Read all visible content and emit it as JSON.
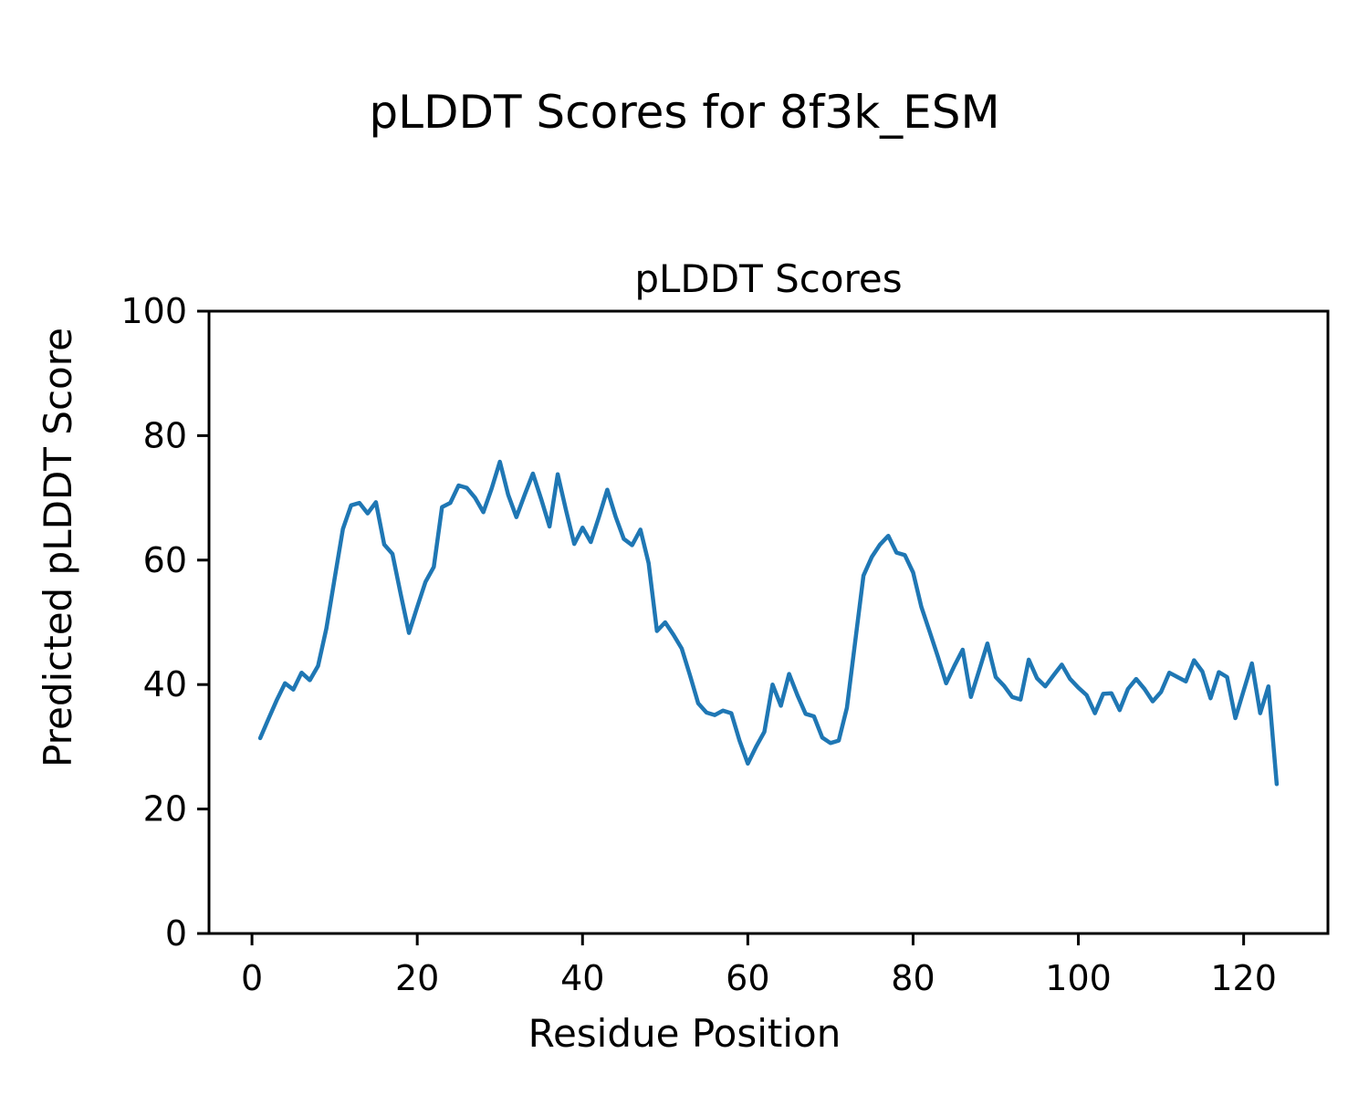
{
  "figure": {
    "suptitle": "pLDDT Scores for 8f3k_ESM",
    "background": "#ffffff"
  },
  "chart_data": {
    "type": "line",
    "title": "pLDDT Scores",
    "xlabel": "Residue Position",
    "ylabel": "Predicted pLDDT Score",
    "line_color": "#1f77b4",
    "axis_color": "#000000",
    "xlim": [
      -5.2,
      130.2
    ],
    "ylim": [
      0,
      100
    ],
    "xticks": [
      0,
      20,
      40,
      60,
      80,
      100,
      120
    ],
    "yticks": [
      0,
      20,
      40,
      60,
      80,
      100
    ],
    "grid": false,
    "legend": "none",
    "x_first_residue": 1,
    "x_step": 1,
    "values": [
      31.4,
      34.5,
      37.5,
      40.2,
      39.2,
      41.9,
      40.7,
      43.0,
      49.0,
      57.0,
      65.0,
      68.8,
      69.2,
      67.5,
      69.3,
      62.5,
      61.0,
      54.5,
      48.3,
      52.5,
      56.5,
      58.9,
      68.5,
      69.2,
      72.0,
      71.6,
      70.0,
      67.7,
      71.5,
      75.8,
      70.5,
      66.9,
      70.5,
      73.9,
      69.8,
      65.4,
      73.8,
      68.0,
      62.6,
      65.2,
      62.9,
      67.0,
      71.3,
      67.0,
      63.4,
      62.4,
      64.9,
      59.5,
      48.6,
      50.0,
      48.0,
      45.8,
      41.5,
      37.0,
      35.5,
      35.1,
      35.8,
      35.4,
      31.0,
      27.3,
      30.0,
      32.4,
      40.0,
      36.6,
      41.7,
      38.3,
      35.3,
      34.9,
      31.5,
      30.6,
      31.0,
      36.3,
      47.0,
      57.5,
      60.5,
      62.5,
      63.9,
      61.2,
      60.8,
      58.0,
      52.5,
      48.5,
      44.5,
      40.2,
      43.0,
      45.6,
      38.0,
      42.3,
      46.6,
      41.2,
      39.8,
      38.0,
      37.6,
      44.0,
      41.0,
      39.7,
      41.5,
      43.2,
      40.9,
      39.5,
      38.3,
      35.4,
      38.5,
      38.6,
      35.9,
      39.3,
      40.9,
      39.3,
      37.3,
      38.8,
      41.9,
      41.2,
      40.5,
      43.9,
      42.1,
      37.8,
      42.0,
      41.2,
      34.6,
      39.0,
      43.4,
      35.4,
      39.7,
      24.0
    ]
  }
}
